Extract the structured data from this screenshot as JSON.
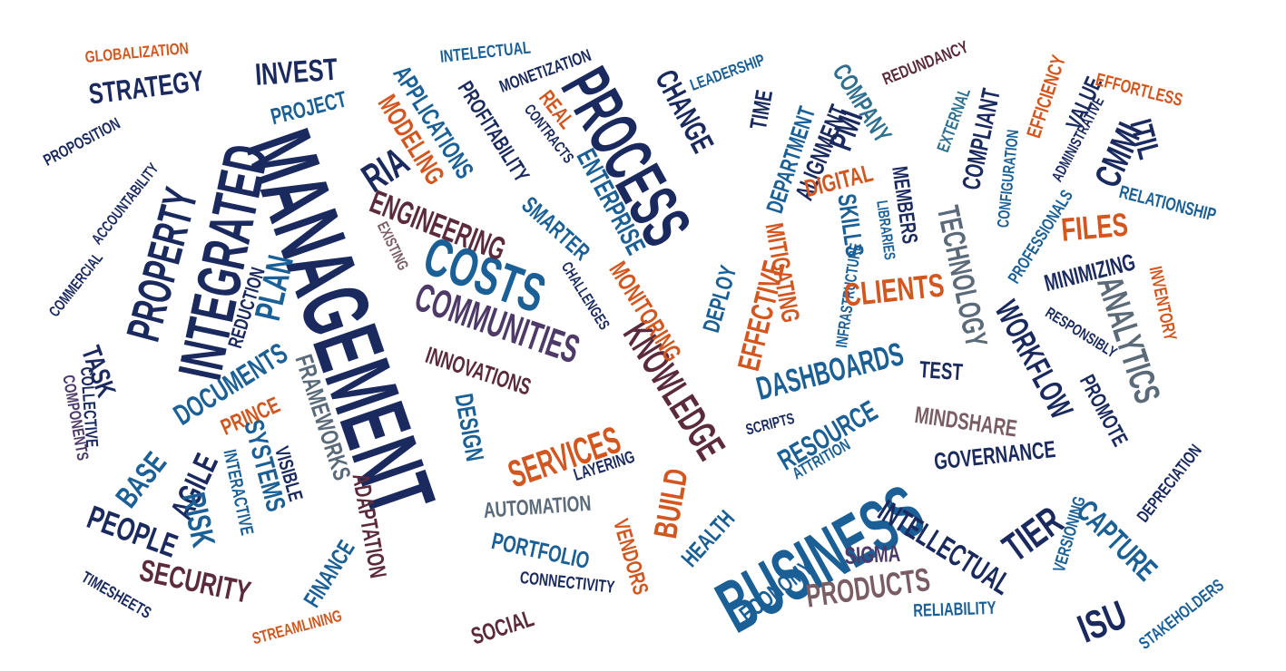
{
  "colors": {
    "navy": "#1a2a5e",
    "blue": "#1a5f96",
    "teal": "#2e6f8f",
    "orange": "#d4561f",
    "purple": "#4d3a68",
    "plum": "#5b2a3d",
    "gray": "#5a6a78",
    "mauve": "#7a5d64"
  },
  "words": [
    {
      "text": "MANAGEMENT",
      "color": "navy"
    },
    {
      "text": "INTEGRATED",
      "color": "navy"
    },
    {
      "text": "PROPERTY",
      "color": "navy"
    },
    {
      "text": "BUSINESS",
      "color": "blue"
    },
    {
      "text": "PROCESS",
      "color": "navy"
    },
    {
      "text": "COSTS",
      "color": "blue"
    },
    {
      "text": "COMMUNITIES",
      "color": "purple"
    },
    {
      "text": "KNOWLEDGE",
      "color": "plum"
    },
    {
      "text": "SERVICES",
      "color": "orange"
    },
    {
      "text": "STRATEGY",
      "color": "navy"
    },
    {
      "text": "INVEST",
      "color": "navy"
    },
    {
      "text": "GLOBALIZATION",
      "color": "orange"
    },
    {
      "text": "PROJECT",
      "color": "blue"
    },
    {
      "text": "RIA",
      "color": "navy"
    },
    {
      "text": "PROPOSITION",
      "color": "navy"
    },
    {
      "text": "ACCOUNTABILITY",
      "color": "navy"
    },
    {
      "text": "COMMERCIAL",
      "color": "navy"
    },
    {
      "text": "REDUCTION",
      "color": "navy"
    },
    {
      "text": "PLAN",
      "color": "blue"
    },
    {
      "text": "TASK",
      "color": "navy"
    },
    {
      "text": "COLLECTIVE",
      "color": "navy"
    },
    {
      "text": "COMPONENTS",
      "color": "purple"
    },
    {
      "text": "DOCUMENTS",
      "color": "blue"
    },
    {
      "text": "PRINCE",
      "color": "orange"
    },
    {
      "text": "FRAMEWORKS",
      "color": "gray"
    },
    {
      "text": "BASE",
      "color": "blue"
    },
    {
      "text": "AGILE",
      "color": "navy"
    },
    {
      "text": "SYSTEMS",
      "color": "blue"
    },
    {
      "text": "INTERACTIVE",
      "color": "blue"
    },
    {
      "text": "VISIBLE",
      "color": "navy"
    },
    {
      "text": "RISK",
      "color": "blue"
    },
    {
      "text": "PEOPLE",
      "color": "navy"
    },
    {
      "text": "SECURITY",
      "color": "plum"
    },
    {
      "text": "TIMESHEETS",
      "color": "navy"
    },
    {
      "text": "STREAMLINING",
      "color": "orange"
    },
    {
      "text": "FINANCE",
      "color": "blue"
    },
    {
      "text": "ADAPTATION",
      "color": "plum"
    },
    {
      "text": "INTELECTUAL",
      "color": "blue"
    },
    {
      "text": "MONETIZATION",
      "color": "navy"
    },
    {
      "text": "APPLICATIONS",
      "color": "blue"
    },
    {
      "text": "MODELING",
      "color": "orange"
    },
    {
      "text": "PROFITABILITY",
      "color": "navy"
    },
    {
      "text": "REAL",
      "color": "orange"
    },
    {
      "text": "CONTRACTS",
      "color": "navy"
    },
    {
      "text": "ENTERPRISE",
      "color": "blue"
    },
    {
      "text": "SMARTER",
      "color": "blue"
    },
    {
      "text": "ENGINEERING",
      "color": "plum"
    },
    {
      "text": "EXISTING",
      "color": "mauve"
    },
    {
      "text": "CHALLENGES",
      "color": "navy"
    },
    {
      "text": "MONITORING",
      "color": "orange"
    },
    {
      "text": "INNOVATIONS",
      "color": "plum"
    },
    {
      "text": "DESIGN",
      "color": "blue"
    },
    {
      "text": "LAYERING",
      "color": "navy"
    },
    {
      "text": "BUILD",
      "color": "orange"
    },
    {
      "text": "AUTOMATION",
      "color": "gray"
    },
    {
      "text": "VENDORS",
      "color": "orange"
    },
    {
      "text": "PORTFOLIO",
      "color": "blue"
    },
    {
      "text": "CONNECTIVITY",
      "color": "navy"
    },
    {
      "text": "SOCIAL",
      "color": "plum"
    },
    {
      "text": "CHANGE",
      "color": "navy"
    },
    {
      "text": "LEADERSHIP",
      "color": "blue"
    },
    {
      "text": "TIME",
      "color": "navy"
    },
    {
      "text": "DEPARTMENT",
      "color": "blue"
    },
    {
      "text": "ALIGNMENT",
      "color": "navy"
    },
    {
      "text": "PMI",
      "color": "navy"
    },
    {
      "text": "COMPANY",
      "color": "teal"
    },
    {
      "text": "REDUNDANCY",
      "color": "plum"
    },
    {
      "text": "EXTERNAL",
      "color": "teal"
    },
    {
      "text": "COMPLIANT",
      "color": "navy"
    },
    {
      "text": "CONFIGURATION",
      "color": "blue"
    },
    {
      "text": "EFFICIENCY",
      "color": "orange"
    },
    {
      "text": "ADMINISTRATIVE",
      "color": "navy"
    },
    {
      "text": "VALUE",
      "color": "navy"
    },
    {
      "text": "EFFORTLESS",
      "color": "orange"
    },
    {
      "text": "CMMI",
      "color": "navy"
    },
    {
      "text": "ITIL",
      "color": "navy"
    },
    {
      "text": "PROFESSIONALS",
      "color": "blue"
    },
    {
      "text": "RELATIONSHIP",
      "color": "blue"
    },
    {
      "text": "FILES",
      "color": "orange"
    },
    {
      "text": "DIGITAL",
      "color": "orange"
    },
    {
      "text": "MEMBERS",
      "color": "navy"
    },
    {
      "text": "SKILLS",
      "color": "blue"
    },
    {
      "text": "LIBRARIES",
      "color": "blue"
    },
    {
      "text": "INFRASTRUCTURE",
      "color": "blue"
    },
    {
      "text": "TECHNOLOGY",
      "color": "gray"
    },
    {
      "text": "MINIMIZING",
      "color": "navy"
    },
    {
      "text": "ANALYTICS",
      "color": "gray"
    },
    {
      "text": "INVENTORY",
      "color": "orange"
    },
    {
      "text": "RESPONSIBLY",
      "color": "navy"
    },
    {
      "text": "WORKFLOW",
      "color": "navy"
    },
    {
      "text": "PROMOTE",
      "color": "navy"
    },
    {
      "text": "DEPRECIATION",
      "color": "navy"
    },
    {
      "text": "DEPLOY",
      "color": "blue"
    },
    {
      "text": "EFFECTIVE",
      "color": "orange"
    },
    {
      "text": "MITIGATING",
      "color": "orange"
    },
    {
      "text": "CLIENTS",
      "color": "orange"
    },
    {
      "text": "DASHBOARDS",
      "color": "blue"
    },
    {
      "text": "TEST",
      "color": "navy"
    },
    {
      "text": "SCRIPTS",
      "color": "navy"
    },
    {
      "text": "RESOURCE",
      "color": "blue"
    },
    {
      "text": "ATTRITION",
      "color": "blue"
    },
    {
      "text": "MINDSHARE",
      "color": "mauve"
    },
    {
      "text": "GOVERNANCE",
      "color": "navy"
    },
    {
      "text": "TIER",
      "color": "navy"
    },
    {
      "text": "INTELLECTUAL",
      "color": "navy"
    },
    {
      "text": "VERSIONING",
      "color": "blue"
    },
    {
      "text": "CAPTURE",
      "color": "blue"
    },
    {
      "text": "ISU",
      "color": "navy"
    },
    {
      "text": "HEALTH",
      "color": "blue"
    },
    {
      "text": "ECONOMY",
      "color": "blue"
    },
    {
      "text": "SIGMA",
      "color": "purple"
    },
    {
      "text": "PRODUCTS",
      "color": "mauve"
    },
    {
      "text": "RELIABILITY",
      "color": "blue"
    },
    {
      "text": "STAKEHOLDERS",
      "color": "blue"
    }
  ]
}
